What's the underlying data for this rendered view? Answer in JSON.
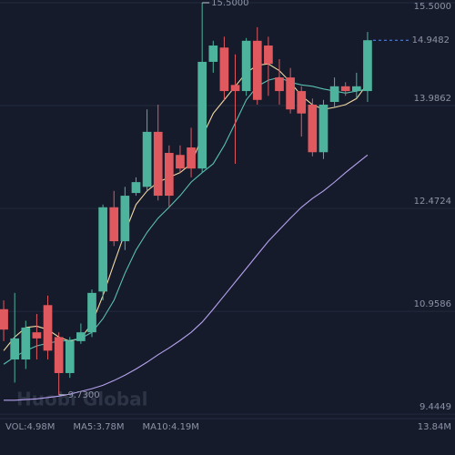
{
  "chart_data": {
    "type": "candlestick",
    "categories": [
      null,
      null,
      null,
      null,
      null,
      null,
      null,
      null,
      null,
      null,
      null,
      null,
      null,
      null,
      null,
      null,
      null,
      null,
      null,
      null,
      null,
      null,
      null,
      null,
      null,
      null,
      null,
      null,
      null,
      null,
      null,
      null,
      null,
      null
    ],
    "open": [
      10.99,
      10.25,
      10.25,
      10.65,
      11.05,
      10.58,
      10.05,
      10.52,
      10.65,
      11.25,
      12.49,
      11.99,
      12.7,
      12.79,
      13.6,
      13.29,
      13.26,
      13.37,
      13.06,
      14.63,
      14.84,
      14.29,
      14.2,
      14.94,
      14.87,
      14.4,
      14.4,
      14.2,
      14.0,
      13.3,
      14.04,
      14.27,
      14.2,
      14.2
    ],
    "high": [
      11.12,
      11.23,
      10.82,
      10.92,
      11.19,
      10.65,
      10.58,
      10.78,
      11.28,
      12.53,
      12.73,
      12.79,
      12.93,
      13.93,
      14.0,
      13.4,
      13.4,
      13.66,
      15.5,
      14.94,
      15.0,
      14.74,
      14.98,
      15.14,
      15.0,
      14.67,
      14.54,
      14.27,
      14.09,
      14.07,
      14.4,
      14.33,
      14.47,
      15.07
    ],
    "low": [
      10.52,
      9.91,
      10.11,
      10.25,
      10.25,
      9.73,
      9.98,
      10.48,
      10.58,
      11.12,
      11.92,
      11.86,
      12.66,
      12.73,
      12.59,
      12.49,
      13.0,
      12.93,
      13.0,
      14.47,
      14.07,
      13.13,
      14.13,
      14.0,
      14.13,
      14.0,
      13.87,
      13.53,
      13.24,
      13.2,
      13.96,
      14.13,
      14.09,
      14.04
    ],
    "close": [
      10.69,
      10.56,
      10.72,
      10.56,
      10.38,
      10.05,
      10.52,
      10.65,
      11.23,
      12.49,
      11.99,
      12.66,
      12.86,
      13.6,
      12.66,
      12.66,
      13.06,
      13.06,
      14.63,
      14.87,
      14.2,
      14.2,
      14.94,
      14.07,
      14.6,
      14.2,
      13.93,
      13.87,
      13.3,
      14.0,
      14.27,
      14.2,
      14.27,
      14.9482
    ],
    "up_color": "#4db39c",
    "down_color": "#e0595f",
    "ma_lines": [
      {
        "color": "#f3d9a4",
        "values": [
          10.38,
          10.58,
          10.72,
          10.74,
          10.69,
          10.58,
          10.52,
          10.56,
          10.78,
          11.19,
          11.66,
          12.12,
          12.53,
          12.73,
          12.86,
          12.93,
          13.0,
          13.13,
          13.53,
          13.87,
          14.07,
          14.27,
          14.47,
          14.58,
          14.6,
          14.5,
          14.33,
          14.13,
          14.0,
          13.93,
          13.96,
          14.0,
          14.09,
          14.31
        ]
      },
      {
        "color": "#5bbfb0",
        "values": [
          10.18,
          10.29,
          10.38,
          10.45,
          10.49,
          10.52,
          10.53,
          10.56,
          10.65,
          10.85,
          11.12,
          11.52,
          11.86,
          12.12,
          12.33,
          12.49,
          12.66,
          12.86,
          13.0,
          13.13,
          13.4,
          13.73,
          14.07,
          14.27,
          14.36,
          14.4,
          14.33,
          14.29,
          14.27,
          14.23,
          14.2,
          14.17,
          14.2,
          14.23
        ]
      },
      {
        "color": "#b7a2f0",
        "values": [
          9.65,
          9.65,
          9.66,
          9.67,
          9.69,
          9.71,
          9.74,
          9.78,
          9.82,
          9.87,
          9.94,
          10.02,
          10.11,
          10.21,
          10.32,
          10.42,
          10.53,
          10.65,
          10.8,
          10.99,
          11.19,
          11.39,
          11.59,
          11.79,
          11.99,
          12.16,
          12.33,
          12.49,
          12.62,
          12.73,
          12.86,
          13.0,
          13.13,
          13.26
        ]
      }
    ],
    "ylim": [
      9.38,
      15.54
    ],
    "yticks": [
      {
        "value": 15.5,
        "label": "15.5000"
      },
      {
        "value": 13.9862,
        "label": "13.9862"
      },
      {
        "value": 12.4724,
        "label": "12.4724"
      },
      {
        "value": 10.9586,
        "label": "10.9586"
      },
      {
        "value": 9.4449,
        "label": "9.4449"
      }
    ],
    "grid": true,
    "annotations": [
      {
        "value": 15.5,
        "label": "15.5000",
        "kind": "high"
      },
      {
        "value": 9.73,
        "label": "9.7300",
        "kind": "low"
      }
    ],
    "last_price": {
      "value": 14.9482,
      "label": "14.9482",
      "color": "#5b8def"
    },
    "watermark": "Huobi Global",
    "volume_legend": [
      {
        "text": "VOL:4.98M",
        "color": "#5b8def"
      },
      {
        "text": "MA5:3.78M",
        "color": "#f3d9a4"
      },
      {
        "text": "MA10:4.19M",
        "color": "#5bbfb0"
      }
    ],
    "volume_axis_label": "13.84M"
  }
}
